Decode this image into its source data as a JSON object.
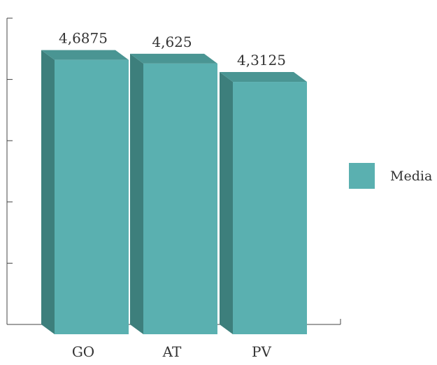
{
  "chart_data": {
    "type": "bar",
    "style": "3d",
    "categories": [
      "GO",
      "AT",
      "PV"
    ],
    "series": [
      {
        "name": "Media",
        "values": [
          4.6875,
          4.625,
          4.3125
        ]
      }
    ],
    "value_labels": [
      "4,6875",
      "4,625",
      "4,3125"
    ],
    "ylim": [
      0,
      5
    ],
    "y_ticks_shown": false,
    "grid": false,
    "legend_position": "right",
    "colors": {
      "front": "#5ab0b0",
      "side": "#3d7f7c",
      "top": "#4a9593",
      "axis": "#444444"
    }
  }
}
